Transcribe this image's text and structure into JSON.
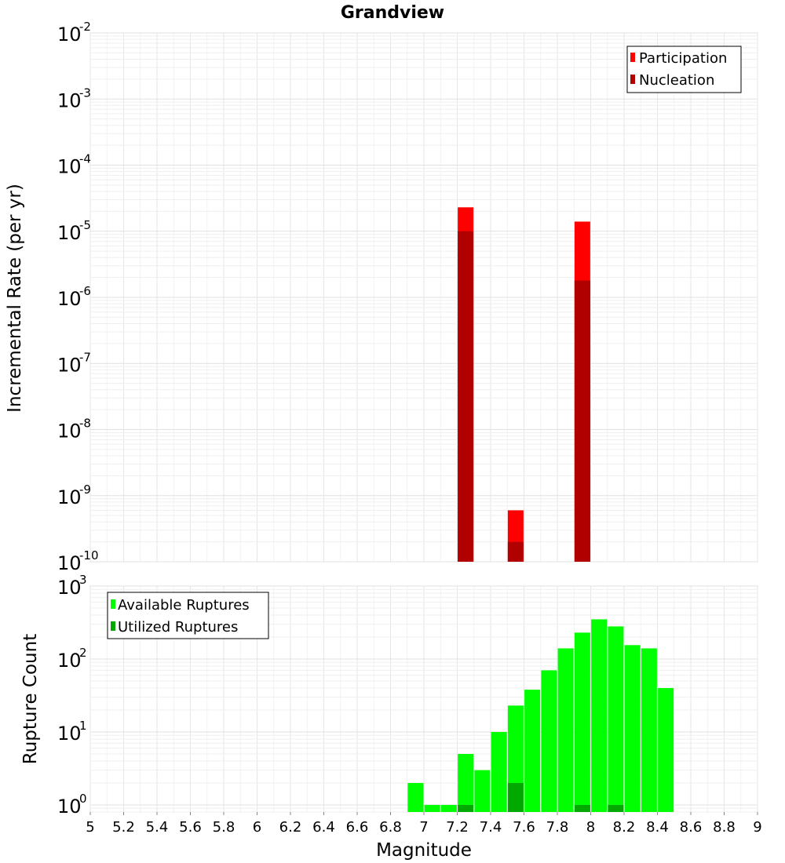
{
  "chart_data": [
    {
      "type": "bar",
      "title": "Grandview",
      "ylabel": "Incremental Rate (per yr)",
      "xlim": [
        5,
        9
      ],
      "yscale": "log",
      "ylim": [
        1e-10,
        0.01
      ],
      "ytick_exponents": [
        -2,
        -3,
        -4,
        -5,
        -6,
        -7,
        -8,
        -9,
        -10
      ],
      "grid": true,
      "legend_position": "top-right",
      "series": [
        {
          "name": "Participation",
          "color": "#ff0000",
          "x": [
            7.25,
            7.55,
            7.95
          ],
          "values": [
            2.3e-05,
            6e-10,
            1.4e-05
          ]
        },
        {
          "name": "Nucleation",
          "color": "#b00000",
          "x": [
            7.25,
            7.55,
            7.95
          ],
          "values": [
            1e-05,
            2e-10,
            1.8e-06
          ]
        }
      ]
    },
    {
      "type": "bar",
      "xlabel": "Magnitude",
      "ylabel": "Rupture Count",
      "xlim": [
        5,
        9
      ],
      "xticks": [
        "5",
        "5.2",
        "5.4",
        "5.6",
        "5.8",
        "6",
        "6.2",
        "6.4",
        "6.6",
        "6.8",
        "7",
        "7.2",
        "7.4",
        "7.6",
        "7.8",
        "8",
        "8.2",
        "8.4",
        "8.6",
        "8.8",
        "9"
      ],
      "yscale": "log",
      "ylim": [
        0.8,
        1000
      ],
      "ytick_exponents": [
        3,
        2,
        1,
        0
      ],
      "grid": true,
      "legend_position": "top-left",
      "series": [
        {
          "name": "Available Ruptures",
          "color": "#00ff00",
          "x": [
            6.95,
            7.05,
            7.15,
            7.25,
            7.35,
            7.45,
            7.55,
            7.65,
            7.75,
            7.85,
            7.95,
            8.05,
            8.15,
            8.25,
            8.35,
            8.45
          ],
          "values": [
            2,
            1,
            1,
            5,
            3,
            10,
            23,
            38,
            70,
            140,
            230,
            350,
            280,
            155,
            140,
            40
          ]
        },
        {
          "name": "Utilized Ruptures",
          "color": "#00a800",
          "x": [
            7.25,
            7.55,
            7.95,
            8.15
          ],
          "values": [
            1,
            2,
            1,
            1
          ]
        }
      ]
    }
  ]
}
